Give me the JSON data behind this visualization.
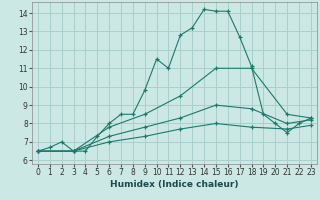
{
  "xlabel": "Humidex (Indice chaleur)",
  "background_color": "#cce8e4",
  "grid_color": "#aacfcc",
  "line_color": "#1a7a6a",
  "xlim": [
    -0.5,
    23.5
  ],
  "ylim": [
    5.8,
    14.6
  ],
  "yticks": [
    6,
    7,
    8,
    9,
    10,
    11,
    12,
    13,
    14
  ],
  "xticks": [
    0,
    1,
    2,
    3,
    4,
    5,
    6,
    7,
    8,
    9,
    10,
    11,
    12,
    13,
    14,
    15,
    16,
    17,
    18,
    19,
    20,
    21,
    22,
    23
  ],
  "series": [
    {
      "x": [
        0,
        1,
        2,
        3,
        4,
        5,
        6,
        7,
        8,
        9,
        10,
        11,
        12,
        13,
        14,
        15,
        16,
        17,
        18,
        19,
        20,
        21,
        22,
        23
      ],
      "y": [
        6.5,
        6.7,
        7.0,
        6.5,
        6.5,
        7.3,
        8.0,
        8.5,
        8.5,
        9.8,
        11.5,
        11.0,
        12.8,
        13.2,
        14.2,
        14.1,
        14.1,
        12.7,
        11.1,
        8.5,
        8.0,
        7.5,
        8.0,
        8.3
      ]
    },
    {
      "x": [
        0,
        3,
        6,
        9,
        12,
        15,
        18,
        21,
        23
      ],
      "y": [
        6.5,
        6.5,
        7.8,
        8.5,
        9.5,
        11.0,
        11.0,
        8.5,
        8.3
      ]
    },
    {
      "x": [
        0,
        3,
        6,
        9,
        12,
        15,
        18,
        21,
        23
      ],
      "y": [
        6.5,
        6.5,
        7.3,
        7.8,
        8.3,
        9.0,
        8.8,
        8.0,
        8.2
      ]
    },
    {
      "x": [
        0,
        3,
        6,
        9,
        12,
        15,
        18,
        21,
        23
      ],
      "y": [
        6.5,
        6.5,
        7.0,
        7.3,
        7.7,
        8.0,
        7.8,
        7.7,
        7.9
      ]
    }
  ]
}
